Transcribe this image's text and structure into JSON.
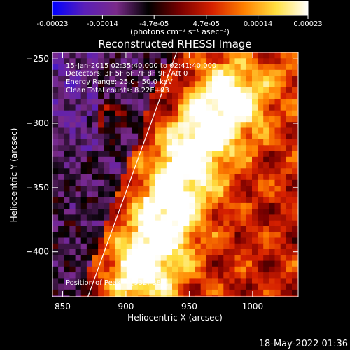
{
  "colorbar": {
    "tick_labels": [
      "-0.00023",
      "-0.00014",
      "-4.7e-05",
      "4.7e-05",
      "0.00014",
      "0.00023"
    ],
    "tick_values": [
      -0.00023,
      -0.00014,
      -4.7e-05,
      4.7e-05,
      0.00014,
      0.00023
    ],
    "range": [
      -0.00023,
      0.00023
    ],
    "units": "(photons cm⁻² s⁻¹ asec⁻²)",
    "colors": [
      "#0000ff",
      "#5a1fb8",
      "#7a2a8a",
      "#000000",
      "#7a0000",
      "#d62000",
      "#ff8000",
      "#ffe040",
      "#ffffff"
    ]
  },
  "chart_data": {
    "type": "heatmap",
    "title": "Reconstructed RHESSI Image",
    "xlabel": "Heliocentric X (arcsec)",
    "ylabel": "Heliocentric Y (arcsec)",
    "xlim": [
      842,
      1036
    ],
    "ylim": [
      -435,
      -245
    ],
    "x_ticks": [
      850,
      900,
      950,
      1000
    ],
    "y_ticks": [
      -250,
      -300,
      -350,
      -400
    ],
    "annotations": [
      "15-Jan-2015 02:35:40.000 to 02:41:40.000",
      "Detectors: 3F 5F 6F 7F 8F 9F, Att 0",
      "Energy Range: 25.0 - 50.0 keV",
      "Clean     Total counts: 8.22E+03"
    ],
    "peak_label": "Position of Peak = [932,-388]",
    "peak": [
      932,
      -388
    ],
    "limb": [
      [
        870,
        -435
      ],
      [
        940,
        -245
      ]
    ],
    "bright_ridge": [
      [
        910,
        -410
      ],
      [
        925,
        -380
      ],
      [
        935,
        -350
      ],
      [
        950,
        -320
      ],
      [
        965,
        -300
      ],
      [
        980,
        -280
      ]
    ]
  },
  "footer": {
    "timestamp": "18-May-2022 01:36"
  }
}
